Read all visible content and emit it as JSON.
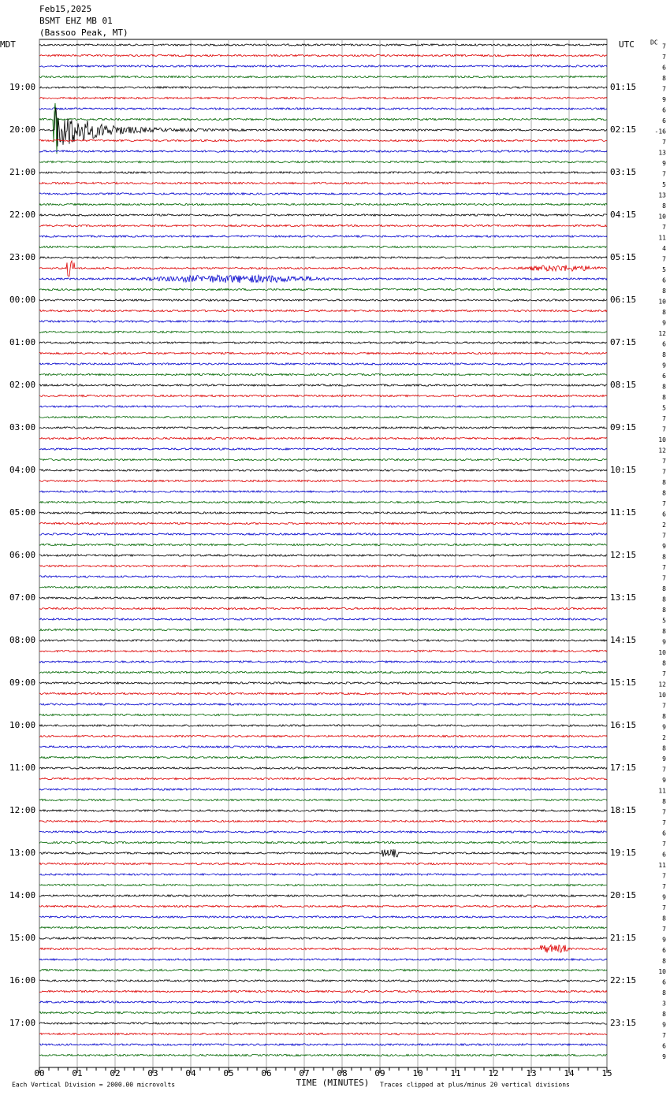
{
  "header": {
    "date": "Feb15,2025",
    "station": "BSMT EHZ MB 01",
    "location": "(Bassoo Peak, MT)"
  },
  "left_label": "MDT",
  "right_label": "UTC",
  "dc_label": "DC",
  "left_times": [
    "19:00",
    "20:00",
    "21:00",
    "22:00",
    "23:00",
    "00:00",
    "01:00",
    "02:00",
    "03:00",
    "04:00",
    "05:00",
    "06:00",
    "07:00",
    "08:00",
    "09:00",
    "10:00",
    "11:00",
    "12:00",
    "13:00",
    "14:00",
    "15:00",
    "16:00",
    "17:00"
  ],
  "right_times": [
    "01:15",
    "02:15",
    "03:15",
    "04:15",
    "05:15",
    "06:15",
    "07:15",
    "08:15",
    "09:15",
    "10:15",
    "11:15",
    "12:15",
    "13:15",
    "14:15",
    "15:15",
    "16:15",
    "17:15",
    "18:15",
    "19:15",
    "20:15",
    "21:15",
    "22:15",
    "23:15"
  ],
  "dc_values": [
    7,
    7,
    6,
    8,
    7,
    9,
    6,
    6,
    -16,
    7,
    13,
    9,
    7,
    5,
    13,
    8,
    10,
    7,
    11,
    4,
    7,
    5,
    6,
    8,
    10,
    8,
    9,
    12,
    6,
    8,
    9,
    6,
    8,
    8,
    5,
    7,
    7,
    10,
    12,
    7,
    7,
    8,
    8,
    7,
    6,
    2,
    7,
    9,
    8,
    7,
    7,
    8,
    8,
    8,
    5,
    8,
    9,
    10,
    8,
    7,
    12,
    10,
    7,
    8,
    9,
    2,
    8,
    9,
    7,
    9,
    11,
    8,
    7,
    7,
    6,
    7,
    6,
    11,
    7,
    7,
    9,
    7,
    8,
    7,
    9,
    6,
    8,
    10,
    6,
    8,
    3,
    8,
    9,
    7,
    6,
    9
  ],
  "x_ticks": [
    "00",
    "01",
    "02",
    "03",
    "04",
    "05",
    "06",
    "07",
    "08",
    "09",
    "10",
    "11",
    "12",
    "13",
    "14",
    "15"
  ],
  "footer": {
    "scale": "Each Vertical Division = 2000.00 microvolts",
    "axis_title": "TIME (MINUTES)",
    "clip_note": "Traces clipped at plus/minus 20 vertical divisions"
  }
}
